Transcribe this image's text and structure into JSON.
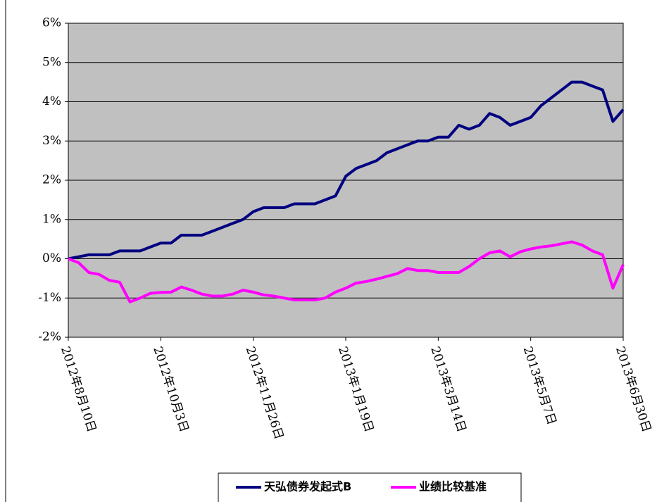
{
  "chart_data": {
    "type": "line",
    "x": [
      "2012-08-10",
      "2012-08-16",
      "2012-08-22",
      "2012-08-28",
      "2012-09-03",
      "2012-09-09",
      "2012-09-15",
      "2012-09-21",
      "2012-09-27",
      "2012-10-03",
      "2012-10-09",
      "2012-10-15",
      "2012-10-21",
      "2012-10-27",
      "2012-11-02",
      "2012-11-08",
      "2012-11-14",
      "2012-11-20",
      "2012-11-26",
      "2012-12-02",
      "2012-12-08",
      "2012-12-14",
      "2012-12-20",
      "2012-12-26",
      "2013-01-01",
      "2013-01-07",
      "2013-01-13",
      "2013-01-19",
      "2013-01-25",
      "2013-01-31",
      "2013-02-06",
      "2013-02-12",
      "2013-02-18",
      "2013-02-24",
      "2013-03-02",
      "2013-03-08",
      "2013-03-14",
      "2013-03-20",
      "2013-03-26",
      "2013-04-01",
      "2013-04-07",
      "2013-04-13",
      "2013-04-19",
      "2013-04-25",
      "2013-05-01",
      "2013-05-07",
      "2013-05-13",
      "2013-05-19",
      "2013-05-25",
      "2013-05-31",
      "2013-06-06",
      "2013-06-12",
      "2013-06-18",
      "2013-06-24",
      "2013-06-30"
    ],
    "series": [
      {
        "name": "天弘债券发起式B",
        "color": "#000080",
        "values": [
          0,
          0.05,
          0.1,
          0.1,
          0.1,
          0.2,
          0.2,
          0.2,
          0.3,
          0.4,
          0.4,
          0.6,
          0.6,
          0.6,
          0.7,
          0.8,
          0.9,
          1.0,
          1.2,
          1.3,
          1.3,
          1.3,
          1.4,
          1.4,
          1.4,
          1.5,
          1.6,
          2.1,
          2.3,
          2.4,
          2.5,
          2.7,
          2.8,
          2.9,
          3.0,
          3.0,
          3.1,
          3.1,
          3.4,
          3.3,
          3.4,
          3.7,
          3.6,
          3.4,
          3.5,
          3.6,
          3.9,
          4.1,
          4.3,
          4.5,
          4.5,
          4.4,
          4.3,
          3.5,
          3.8
        ]
      },
      {
        "name": "业绩比较基准",
        "color": "#ff00ff",
        "values": [
          0,
          -0.1,
          -0.35,
          -0.4,
          -0.55,
          -0.6,
          -1.1,
          -1.0,
          -0.88,
          -0.86,
          -0.85,
          -0.72,
          -0.8,
          -0.9,
          -0.95,
          -0.95,
          -0.9,
          -0.8,
          -0.85,
          -0.92,
          -0.95,
          -1.0,
          -1.05,
          -1.05,
          -1.05,
          -1.0,
          -0.85,
          -0.75,
          -0.62,
          -0.58,
          -0.52,
          -0.45,
          -0.38,
          -0.25,
          -0.3,
          -0.3,
          -0.35,
          -0.35,
          -0.35,
          -0.2,
          0.0,
          0.15,
          0.2,
          0.05,
          0.18,
          0.25,
          0.3,
          0.33,
          0.38,
          0.43,
          0.35,
          0.2,
          0.1,
          -0.75,
          -0.15
        ]
      }
    ],
    "xlim": [
      "2012-08-10",
      "2013-06-30"
    ],
    "xticks": [
      {
        "value": "2012-08-10",
        "label": "2012年8月10日"
      },
      {
        "value": "2012-10-03",
        "label": "2012年10月3日"
      },
      {
        "value": "2012-11-26",
        "label": "2012年11月26日"
      },
      {
        "value": "2013-01-19",
        "label": "2013年1月19日"
      },
      {
        "value": "2013-03-14",
        "label": "2013年3月14日"
      },
      {
        "value": "2013-05-07",
        "label": "2013年5月7日"
      },
      {
        "value": "2013-06-30",
        "label": "2013年6月30日"
      }
    ],
    "ylim": [
      -2,
      6
    ],
    "yticks": [
      {
        "value": -2,
        "label": "-2%"
      },
      {
        "value": -1,
        "label": "-1%"
      },
      {
        "value": 0,
        "label": "0%"
      },
      {
        "value": 1,
        "label": "1%"
      },
      {
        "value": 2,
        "label": "2%"
      },
      {
        "value": 3,
        "label": "3%"
      },
      {
        "value": 4,
        "label": "4%"
      },
      {
        "value": 5,
        "label": "5%"
      },
      {
        "value": 6,
        "label": "6%"
      }
    ],
    "grid": true,
    "legend": "bottom",
    "background": "#c0c0c0"
  }
}
